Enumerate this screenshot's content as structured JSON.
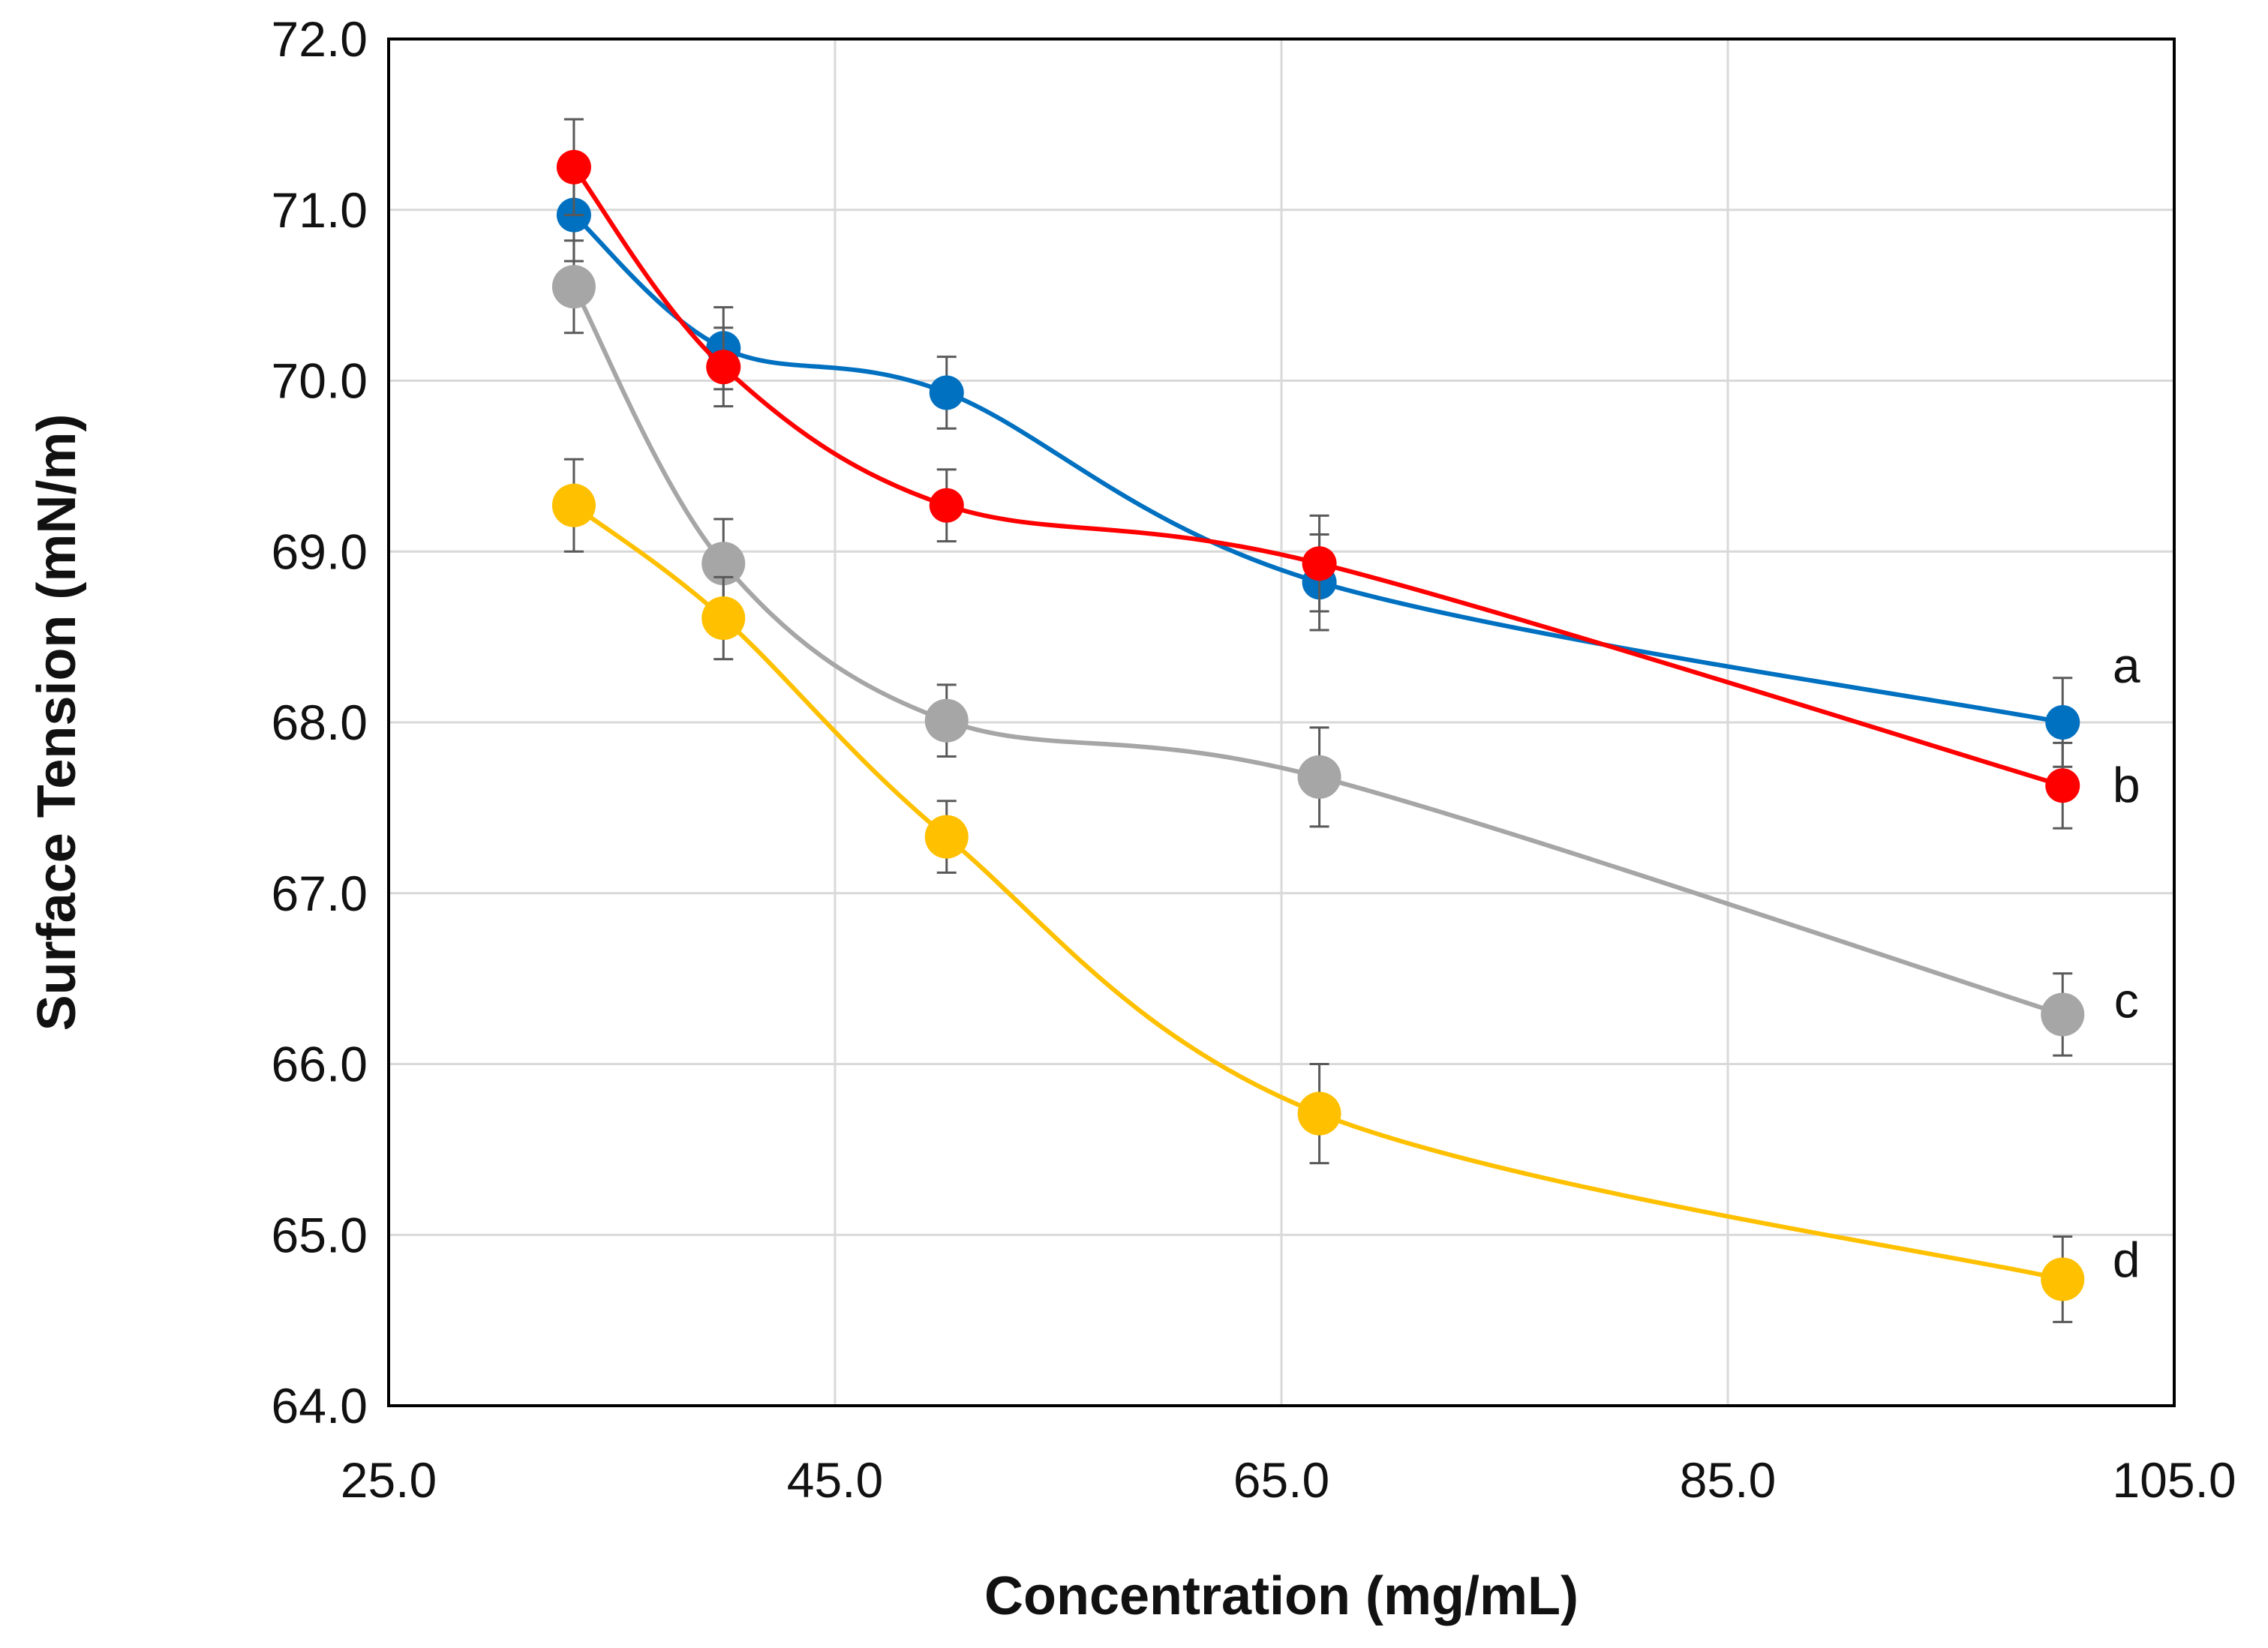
{
  "chart_data": {
    "type": "line",
    "title": "",
    "xlabel": "Concentration (mg/mL)",
    "ylabel": "Surface Tension (mN/m)",
    "xlim": [
      25.0,
      105.0
    ],
    "ylim": [
      64.0,
      72.0
    ],
    "x_ticks": [
      "25.0",
      "45.0",
      "65.0",
      "85.0",
      "105.0"
    ],
    "y_ticks": [
      "64.0",
      "65.0",
      "66.0",
      "67.0",
      "68.0",
      "69.0",
      "70.0",
      "71.0",
      "72.0"
    ],
    "grid": true,
    "legend": "none",
    "x": [
      33.3,
      40.0,
      50.0,
      66.7,
      100.0
    ],
    "series": [
      {
        "name": "a",
        "label": "a",
        "color": "#0070C0",
        "values": [
          70.97,
          70.19,
          69.93,
          68.82,
          68.0
        ],
        "errors": [
          0.27,
          0.24,
          0.21,
          0.28,
          0.26
        ]
      },
      {
        "name": "b",
        "label": "b",
        "color": "#FF0000",
        "values": [
          71.25,
          70.08,
          69.27,
          68.93,
          67.63
        ],
        "errors": [
          0.28,
          0.23,
          0.21,
          0.28,
          0.25
        ]
      },
      {
        "name": "c",
        "label": "c",
        "color": "#A6A6A6",
        "values": [
          70.55,
          68.93,
          68.01,
          67.68,
          66.29
        ],
        "errors": [
          0.27,
          0.26,
          0.21,
          0.29,
          0.24
        ]
      },
      {
        "name": "d",
        "label": "d",
        "color": "#FFC000",
        "values": [
          69.27,
          68.61,
          67.33,
          65.71,
          64.74
        ],
        "errors": [
          0.27,
          0.24,
          0.21,
          0.29,
          0.25
        ]
      }
    ]
  }
}
